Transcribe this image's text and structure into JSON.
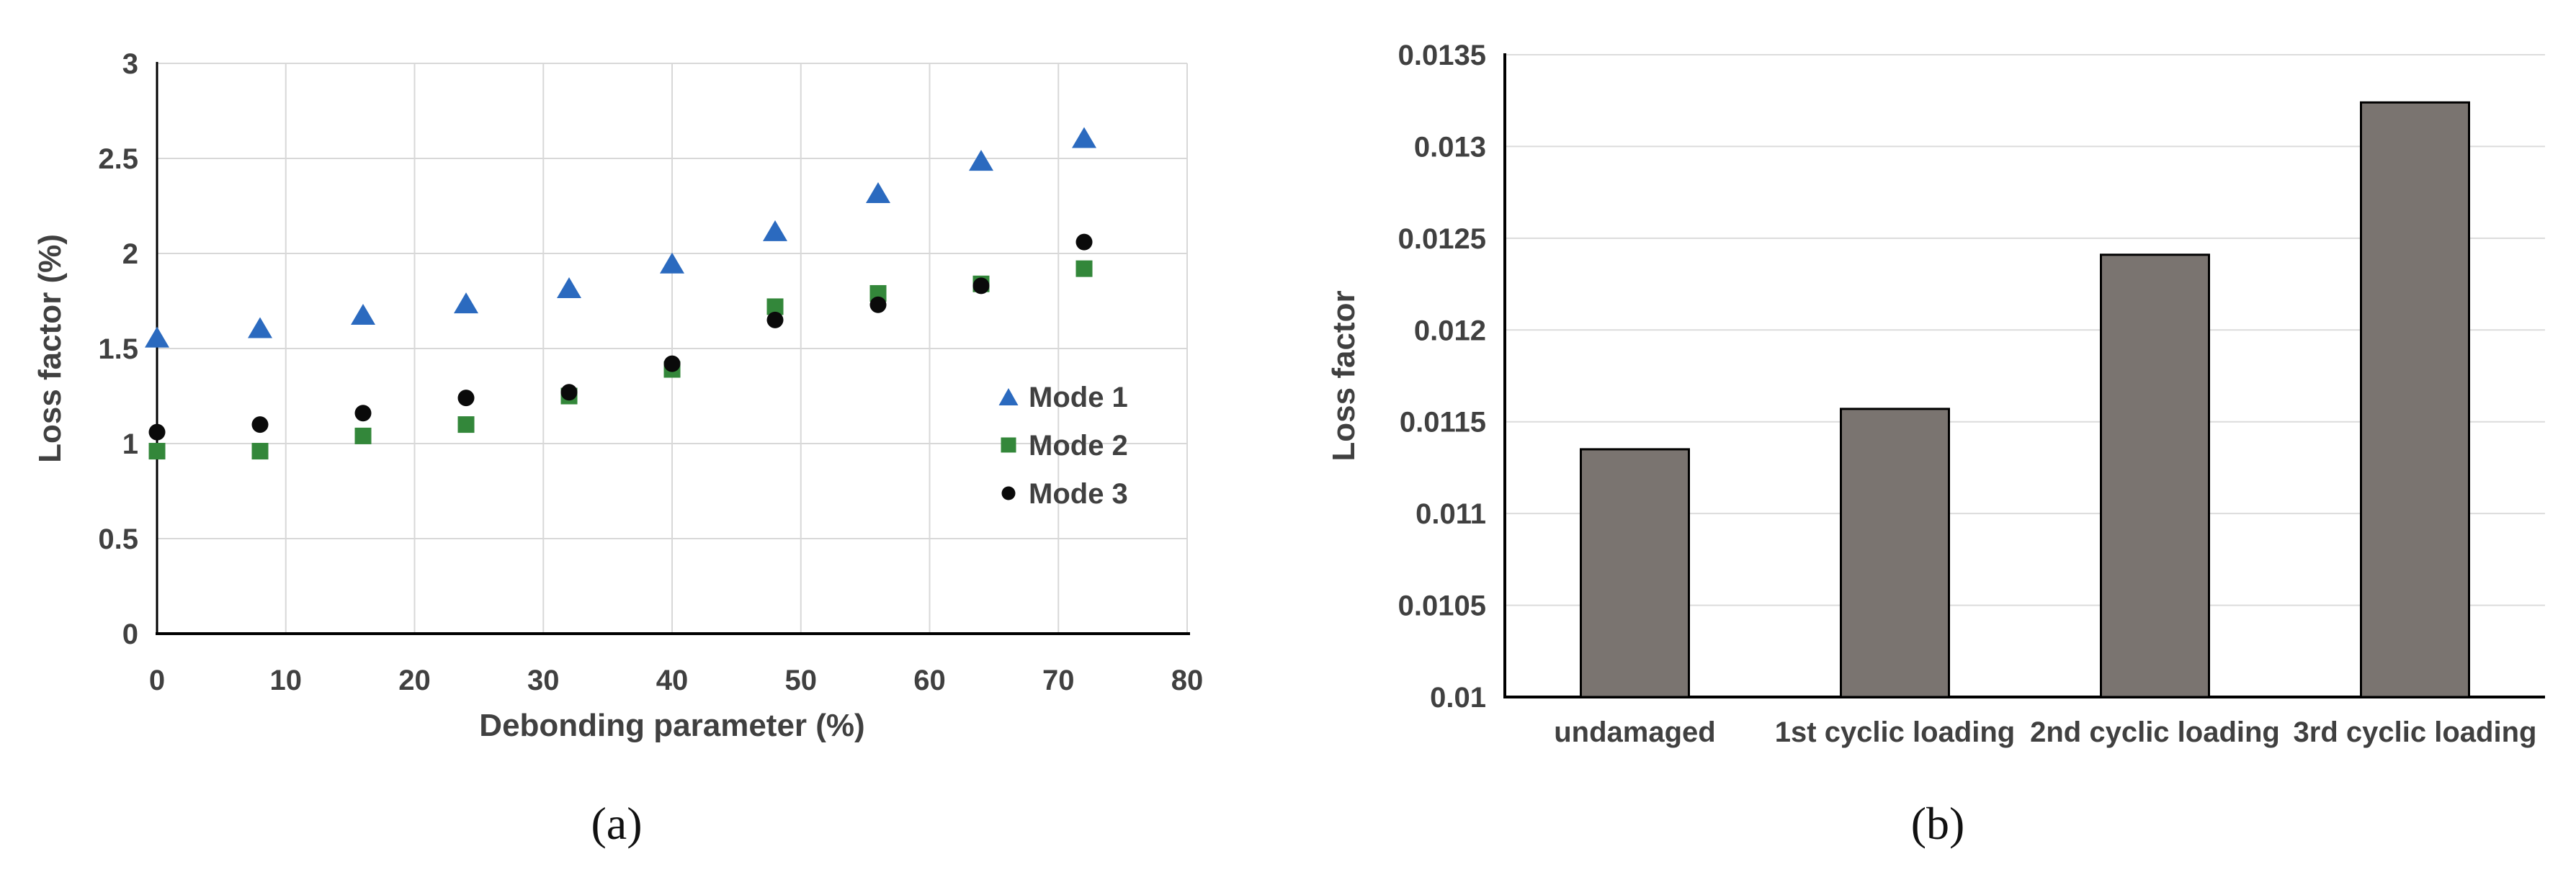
{
  "figure": {
    "caption_a": "(a)",
    "caption_b": "(b)"
  },
  "chart_data": [
    {
      "id": "a",
      "type": "scatter",
      "xlabel": "Debonding parameter (%)",
      "ylabel": "Loss factor (%)",
      "xlim": [
        0,
        80
      ],
      "ylim": [
        0,
        3
      ],
      "x_ticks": [
        0,
        10,
        20,
        30,
        40,
        50,
        60,
        70,
        80
      ],
      "x_tick_labels": [
        "0",
        "10",
        "20",
        "30",
        "40",
        "50",
        "60",
        "70",
        "80"
      ],
      "y_ticks": [
        0,
        0.5,
        1,
        1.5,
        2,
        2.5,
        3
      ],
      "y_tick_labels": [
        "0",
        "0.5",
        "1",
        "1.5",
        "2",
        "2.5",
        "3"
      ],
      "grid": true,
      "legend_position": "right-middle",
      "x": [
        0,
        8,
        16,
        24,
        32,
        40,
        48,
        56,
        64,
        72
      ],
      "series": [
        {
          "name": "Mode 1",
          "marker": "triangle",
          "color": "#2B6ABF",
          "values": [
            1.56,
            1.61,
            1.68,
            1.74,
            1.82,
            1.95,
            2.12,
            2.32,
            2.49,
            2.61
          ]
        },
        {
          "name": "Mode 2",
          "marker": "square",
          "color": "#33873A",
          "values": [
            0.96,
            0.96,
            1.04,
            1.1,
            1.25,
            1.39,
            1.72,
            1.79,
            1.84,
            1.92
          ]
        },
        {
          "name": "Mode 3",
          "marker": "circle",
          "color": "#0A0A0A",
          "values": [
            1.06,
            1.1,
            1.16,
            1.24,
            1.27,
            1.42,
            1.65,
            1.73,
            1.83,
            2.06
          ]
        }
      ],
      "text_color": "#404040",
      "grid_color": "#D8D8D8",
      "axis_color": "#000000"
    },
    {
      "id": "b",
      "type": "bar",
      "xlabel": "",
      "ylabel": "Loss factor",
      "ylim": [
        0.01,
        0.0135
      ],
      "y_ticks": [
        0.01,
        0.0105,
        0.011,
        0.0115,
        0.012,
        0.0125,
        0.013,
        0.0135
      ],
      "y_tick_labels": [
        "0.01",
        "0.0105",
        "0.011",
        "0.0115",
        "0.012",
        "0.0125",
        "0.013",
        "0.0135"
      ],
      "grid": true,
      "categories": [
        "undamaged",
        "1st cyclic loading",
        "2nd cyclic loading",
        "3rd cyclic loading"
      ],
      "values": [
        0.01135,
        0.01157,
        0.01241,
        0.01324
      ],
      "bar_color": "#7A7470",
      "bar_border": "#000000",
      "text_color": "#404040",
      "grid_color": "#DCDCDC",
      "axis_color": "#000000"
    }
  ]
}
